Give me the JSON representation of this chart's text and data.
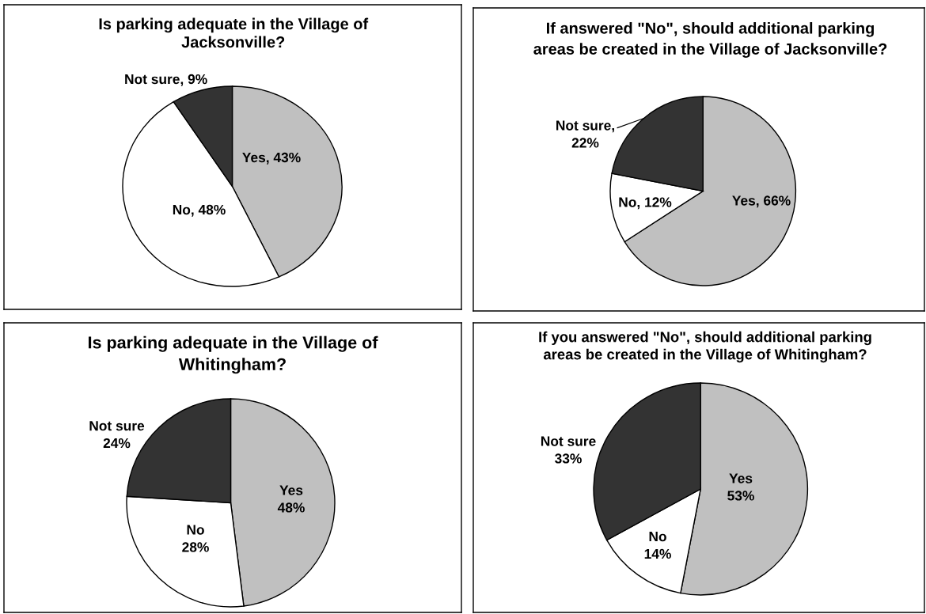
{
  "chart_data": [
    {
      "type": "pie",
      "title": "Is parking adequate in the Village of\nJacksonville?",
      "categories": [
        null,
        null,
        null
      ],
      "values": [
        43,
        48,
        9
      ],
      "value_labels": [
        "Yes, 43%",
        "No, 48%",
        "Not sure, 9%"
      ],
      "colors": [
        "#c0c0c0",
        "#ffffff",
        "#333333"
      ]
    },
    {
      "type": "pie",
      "title": "If answered \"No\", should additional parking\nareas be created in the Village of Jacksonville?",
      "categories": [
        null,
        null,
        null
      ],
      "values": [
        66,
        12,
        22
      ],
      "value_labels": [
        "Yes, 66%",
        "No, 12%",
        "Not sure,\n22%"
      ],
      "colors": [
        "#c0c0c0",
        "#ffffff",
        "#333333"
      ]
    },
    {
      "type": "pie",
      "title": "Is parking adequate in the Village of\nWhitingham?",
      "categories": [
        "Yes",
        "No",
        "Not sure"
      ],
      "values": [
        48,
        28,
        24
      ],
      "value_labels": [
        "48%",
        "28%",
        "24%"
      ],
      "colors": [
        "#c0c0c0",
        "#ffffff",
        "#333333"
      ]
    },
    {
      "type": "pie",
      "title": "If you answered \"No\", should additional parking\nareas be created in the Village of Whitingham?",
      "categories": [
        "Yes",
        "No",
        "Not sure"
      ],
      "values": [
        53,
        14,
        33
      ],
      "value_labels": [
        "53%",
        "14%",
        "33%"
      ],
      "colors": [
        "#c0c0c0",
        "#ffffff",
        "#333333"
      ]
    }
  ]
}
